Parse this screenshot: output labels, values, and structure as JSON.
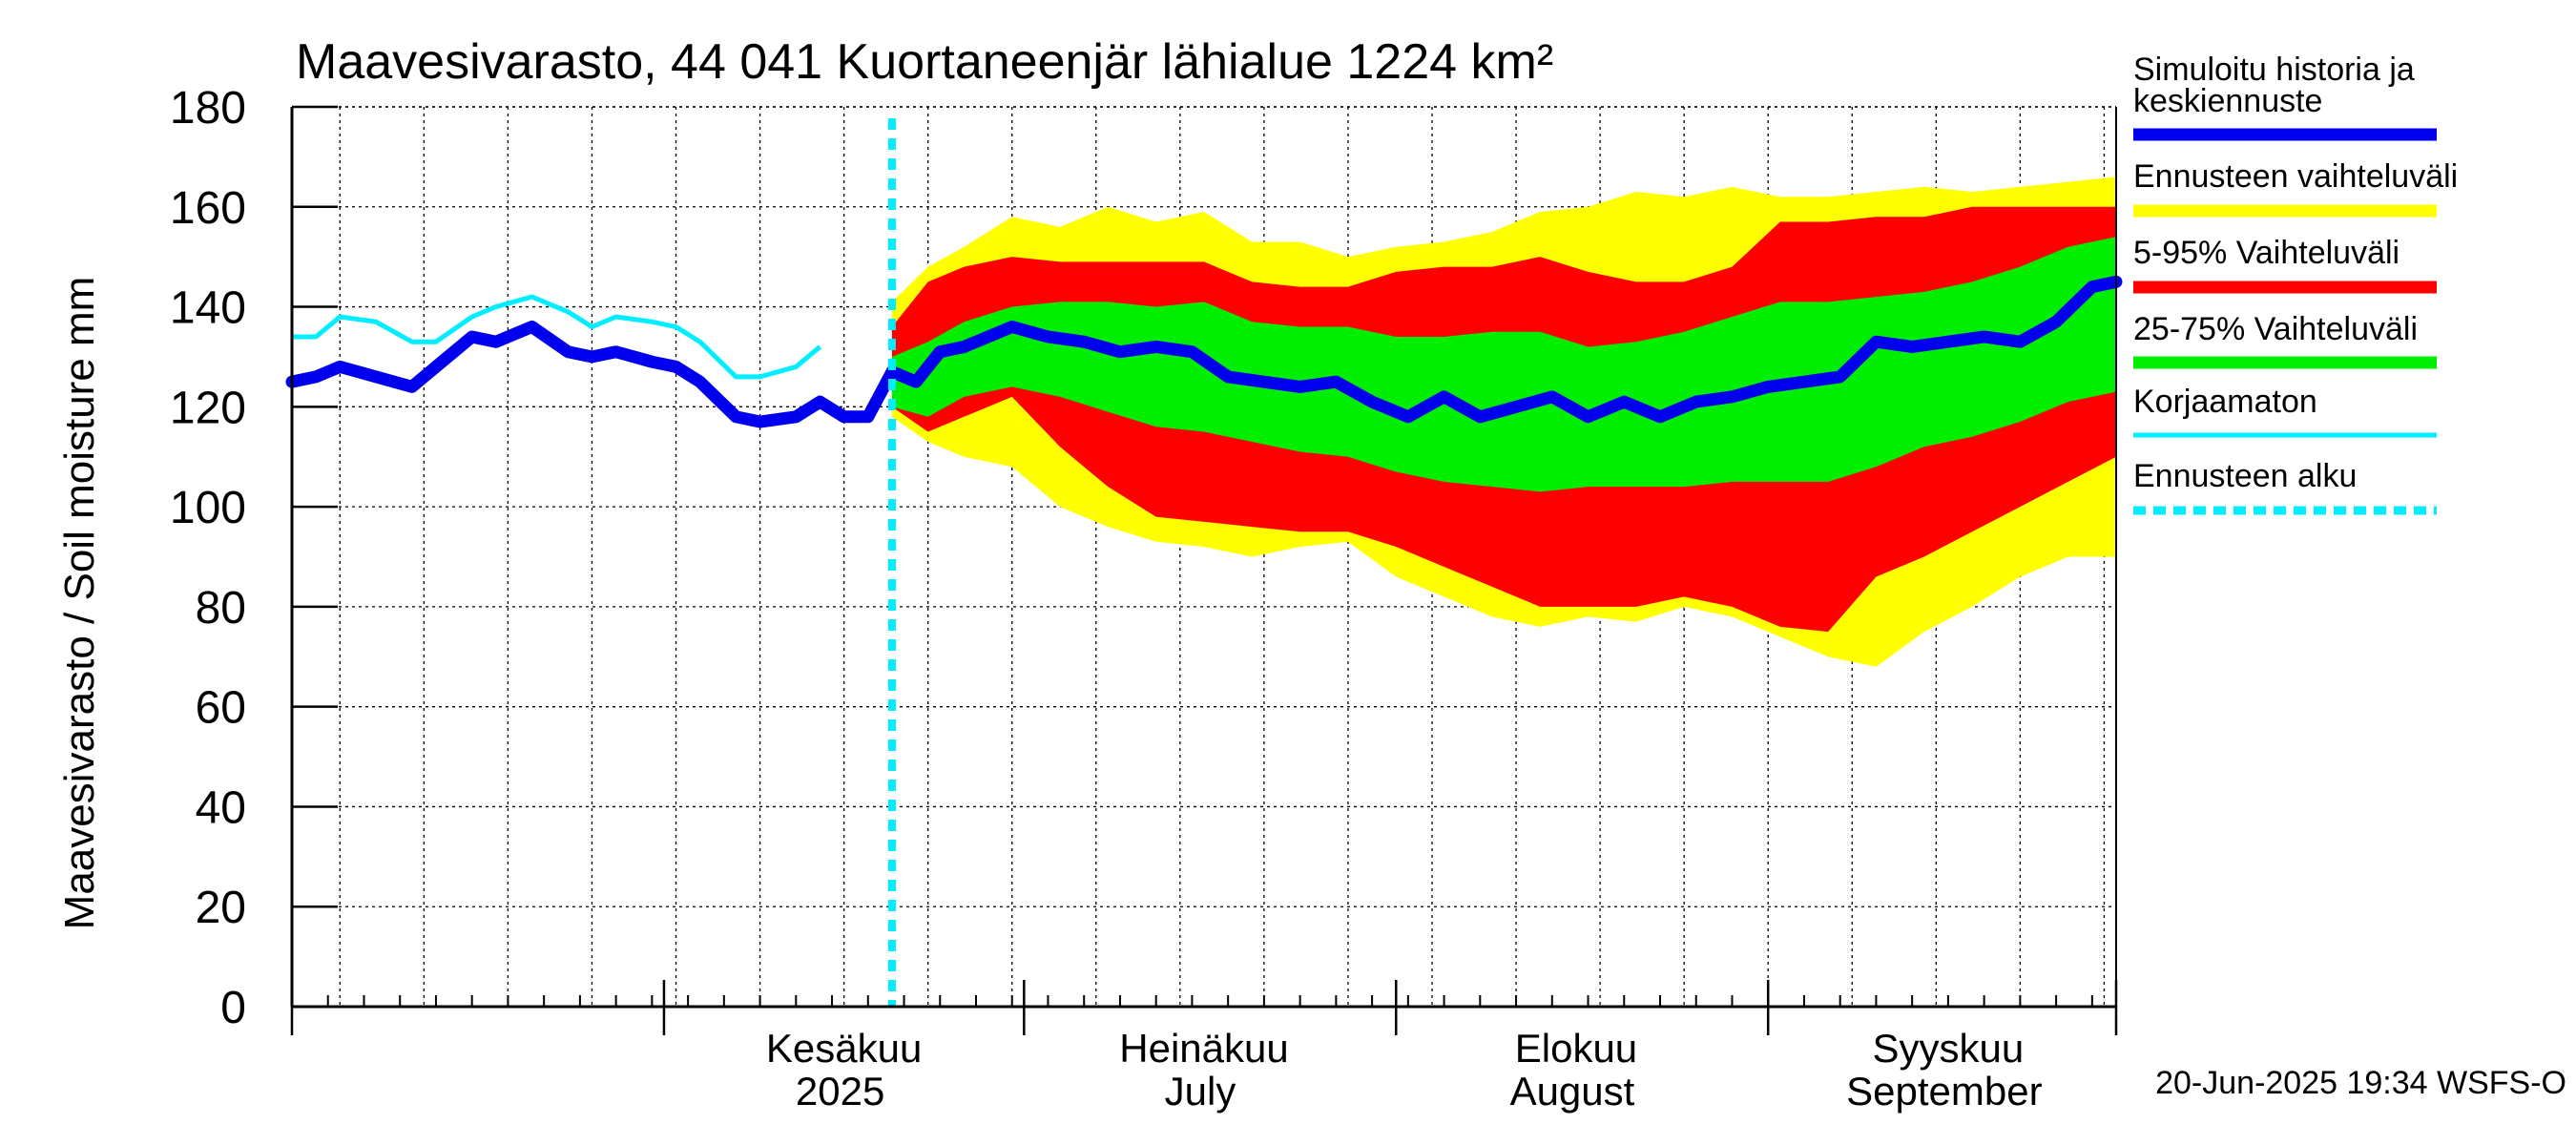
{
  "chart_data": {
    "type": "area",
    "title": "Maavesivarasto, 44 041 Kuortaneenjär lähialue 1224 km²",
    "ylabel": "Maavesivarasto / Soil moisture   mm",
    "ylim": [
      0,
      180
    ],
    "yticks": [
      "0",
      "20",
      "40",
      "60",
      "80",
      "100",
      "120",
      "140",
      "160",
      "180"
    ],
    "ytick_values": [
      0,
      20,
      40,
      60,
      80,
      100,
      120,
      140,
      160,
      180
    ],
    "xlim": [
      "2025-05-01",
      "2025-09-30"
    ],
    "month_labels": [
      {
        "date": "2025-06-01",
        "line1": "Kesäkuu",
        "line2": "2025"
      },
      {
        "date": "2025-07-01",
        "line1": "Heinäkuu",
        "line2": "July"
      },
      {
        "date": "2025-08-01",
        "line1": "Elokuu",
        "line2": "August"
      },
      {
        "date": "2025-09-01",
        "line1": "Syyskuu",
        "line2": "September"
      }
    ],
    "grid": true,
    "legend_position": "right",
    "forecast_start": "2025-06-20",
    "footer": "20-Jun-2025 19:34 WSFS-O",
    "colors": {
      "simulated": "#0000ee",
      "full_range": "#ffff00",
      "range_5_95": "#ff0000",
      "range_25_75": "#00ee00",
      "uncorrected": "#00eeff",
      "forecast_start": "#00eeff"
    },
    "legend": [
      {
        "key": "simulated",
        "label": "Simuloitu historia ja",
        "label2": "keskiennuste"
      },
      {
        "key": "full_range",
        "label": "Ennusteen vaihteluväli"
      },
      {
        "key": "range_5_95",
        "label": "5-95% Vaihteluväli"
      },
      {
        "key": "range_25_75",
        "label": "25-75% Vaihteluväli"
      },
      {
        "key": "uncorrected",
        "label": "Korjaamaton"
      },
      {
        "key": "forecast_start",
        "label": "Ennusteen alku"
      }
    ],
    "series": [
      {
        "name": "Simuloitu historia ja keskiennuste",
        "x": [
          "2025-05-01",
          "2025-05-03",
          "2025-05-05",
          "2025-05-08",
          "2025-05-11",
          "2025-05-13",
          "2025-05-16",
          "2025-05-18",
          "2025-05-21",
          "2025-05-24",
          "2025-05-26",
          "2025-05-28",
          "2025-05-31",
          "2025-06-02",
          "2025-06-04",
          "2025-06-07",
          "2025-06-09",
          "2025-06-12",
          "2025-06-14",
          "2025-06-16",
          "2025-06-18",
          "2025-06-20",
          "2025-06-22",
          "2025-06-24",
          "2025-06-26",
          "2025-06-28",
          "2025-06-30",
          "2025-07-03",
          "2025-07-06",
          "2025-07-09",
          "2025-07-12",
          "2025-07-15",
          "2025-07-18",
          "2025-07-21",
          "2025-07-24",
          "2025-07-27",
          "2025-07-30",
          "2025-08-02",
          "2025-08-05",
          "2025-08-08",
          "2025-08-11",
          "2025-08-14",
          "2025-08-17",
          "2025-08-20",
          "2025-08-23",
          "2025-08-26",
          "2025-08-29",
          "2025-09-01",
          "2025-09-04",
          "2025-09-07",
          "2025-09-10",
          "2025-09-13",
          "2025-09-16",
          "2025-09-19",
          "2025-09-22",
          "2025-09-25",
          "2025-09-28",
          "2025-09-30"
        ],
        "y": [
          125,
          126,
          128,
          126,
          124,
          128,
          134,
          133,
          136,
          131,
          130,
          131,
          129,
          128,
          125,
          118,
          117,
          118,
          121,
          118,
          118,
          127,
          125,
          131,
          132,
          134,
          136,
          134,
          133,
          131,
          132,
          131,
          126,
          125,
          124,
          125,
          121,
          118,
          122,
          118,
          120,
          122,
          118,
          121,
          118,
          121,
          122,
          124,
          125,
          126,
          133,
          132,
          133,
          134,
          133,
          137,
          144,
          145
        ]
      },
      {
        "name": "Korjaamaton",
        "x": [
          "2025-05-01",
          "2025-05-03",
          "2025-05-05",
          "2025-05-08",
          "2025-05-11",
          "2025-05-13",
          "2025-05-16",
          "2025-05-18",
          "2025-05-21",
          "2025-05-24",
          "2025-05-26",
          "2025-05-28",
          "2025-05-31",
          "2025-06-02",
          "2025-06-04",
          "2025-06-07",
          "2025-06-09",
          "2025-06-12",
          "2025-06-14"
        ],
        "y": [
          134,
          134,
          138,
          137,
          133,
          133,
          138,
          140,
          142,
          139,
          136,
          138,
          137,
          136,
          133,
          126,
          126,
          128,
          132
        ]
      }
    ],
    "bands": [
      {
        "name": "Ennusteen vaihteluväli",
        "x": [
          "2025-06-20",
          "2025-06-23",
          "2025-06-26",
          "2025-06-30",
          "2025-07-04",
          "2025-07-08",
          "2025-07-12",
          "2025-07-16",
          "2025-07-20",
          "2025-07-24",
          "2025-07-28",
          "2025-08-01",
          "2025-08-05",
          "2025-08-09",
          "2025-08-13",
          "2025-08-17",
          "2025-08-21",
          "2025-08-25",
          "2025-08-29",
          "2025-09-02",
          "2025-09-06",
          "2025-09-10",
          "2025-09-14",
          "2025-09-18",
          "2025-09-22",
          "2025-09-26",
          "2025-09-30"
        ],
        "low": [
          118,
          113,
          110,
          108,
          100,
          96,
          93,
          92,
          90,
          92,
          93,
          86,
          82,
          78,
          76,
          78,
          77,
          80,
          78,
          74,
          70,
          68,
          75,
          80,
          86,
          90,
          90
        ],
        "high": [
          141,
          148,
          152,
          158,
          156,
          160,
          157,
          159,
          153,
          153,
          150,
          152,
          153,
          155,
          159,
          160,
          163,
          162,
          164,
          162,
          162,
          163,
          164,
          163,
          164,
          165,
          166
        ]
      },
      {
        "name": "5-95% Vaihteluväli",
        "x": [
          "2025-06-20",
          "2025-06-23",
          "2025-06-26",
          "2025-06-30",
          "2025-07-04",
          "2025-07-08",
          "2025-07-12",
          "2025-07-16",
          "2025-07-20",
          "2025-07-24",
          "2025-07-28",
          "2025-08-01",
          "2025-08-05",
          "2025-08-09",
          "2025-08-13",
          "2025-08-17",
          "2025-08-21",
          "2025-08-25",
          "2025-08-29",
          "2025-09-02",
          "2025-09-06",
          "2025-09-10",
          "2025-09-14",
          "2025-09-18",
          "2025-09-22",
          "2025-09-26",
          "2025-09-30"
        ],
        "low": [
          120,
          115,
          118,
          122,
          112,
          104,
          98,
          97,
          96,
          95,
          95,
          92,
          88,
          84,
          80,
          80,
          80,
          82,
          80,
          76,
          75,
          86,
          90,
          95,
          100,
          105,
          110
        ],
        "high": [
          136,
          145,
          148,
          150,
          149,
          149,
          149,
          149,
          145,
          144,
          144,
          147,
          148,
          148,
          150,
          147,
          145,
          145,
          148,
          157,
          157,
          158,
          158,
          160,
          160,
          160,
          160
        ]
      },
      {
        "name": "25-75% Vaihteluväli",
        "x": [
          "2025-06-20",
          "2025-06-23",
          "2025-06-26",
          "2025-06-30",
          "2025-07-04",
          "2025-07-08",
          "2025-07-12",
          "2025-07-16",
          "2025-07-20",
          "2025-07-24",
          "2025-07-28",
          "2025-08-01",
          "2025-08-05",
          "2025-08-09",
          "2025-08-13",
          "2025-08-17",
          "2025-08-21",
          "2025-08-25",
          "2025-08-29",
          "2025-09-02",
          "2025-09-06",
          "2025-09-10",
          "2025-09-14",
          "2025-09-18",
          "2025-09-22",
          "2025-09-26",
          "2025-09-30"
        ],
        "low": [
          120,
          118,
          122,
          124,
          122,
          119,
          116,
          115,
          113,
          111,
          110,
          107,
          105,
          104,
          103,
          104,
          104,
          104,
          105,
          105,
          105,
          108,
          112,
          114,
          117,
          121,
          123
        ],
        "high": [
          130,
          133,
          137,
          140,
          141,
          141,
          140,
          141,
          137,
          136,
          136,
          134,
          134,
          135,
          135,
          132,
          133,
          135,
          138,
          141,
          141,
          142,
          143,
          145,
          148,
          152,
          154
        ]
      }
    ]
  }
}
